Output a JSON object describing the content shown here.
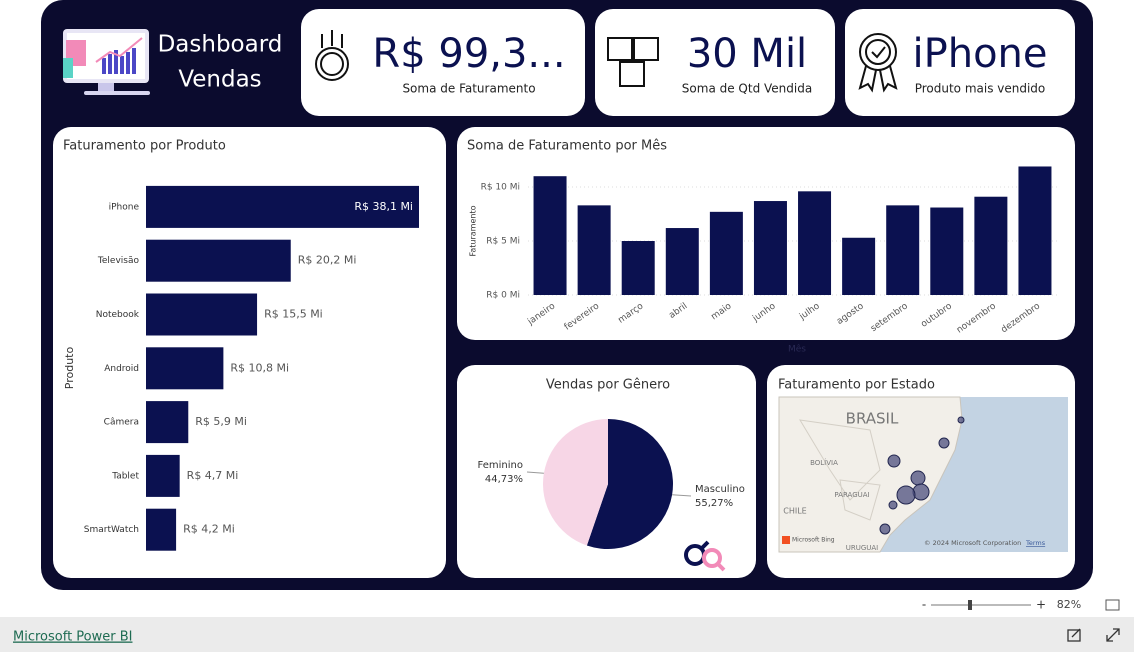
{
  "header": {
    "title": [
      "Dashboard",
      "Vendas"
    ]
  },
  "kpis": [
    {
      "value": "R$ 99,3...",
      "label": "Soma de Faturamento"
    },
    {
      "value": "30 Mil",
      "label": "Soma de Qtd Vendida"
    },
    {
      "value": "iPhone",
      "label": "Produto mais vendido"
    }
  ],
  "chart_data": [
    {
      "type": "bar",
      "orientation": "horizontal",
      "title": "Faturamento por Produto",
      "y_label": "Produto",
      "categories": [
        "iPhone",
        "Televisão",
        "Notebook",
        "Android",
        "Câmera",
        "Tablet",
        "SmartWatch"
      ],
      "values": [
        38.1,
        20.2,
        15.5,
        10.8,
        5.9,
        4.7,
        4.2
      ],
      "value_labels": [
        "R$ 38,1 Mi",
        "R$ 20,2 Mi",
        "R$ 15,5 Mi",
        "R$ 10,8 Mi",
        "R$ 5,9 Mi",
        "R$ 4,7 Mi",
        "R$ 4,2 Mi"
      ],
      "color": "#0b1150"
    },
    {
      "type": "bar",
      "title": "Soma de Faturamento por Mês",
      "x_label": "Mês",
      "y_label": "Faturamento",
      "categories": [
        "janeiro",
        "fevereiro",
        "março",
        "abril",
        "maio",
        "junho",
        "julho",
        "agosto",
        "setembro",
        "outubro",
        "novembro",
        "dezembro"
      ],
      "values": [
        11.0,
        8.3,
        5.0,
        6.2,
        7.7,
        8.7,
        9.6,
        5.3,
        8.3,
        8.1,
        9.1,
        11.9
      ],
      "ylim": [
        0,
        12.5
      ],
      "yticks": [
        {
          "value": 0,
          "label": "R$ 0 Mi"
        },
        {
          "value": 5,
          "label": "R$ 5 Mi"
        },
        {
          "value": 10,
          "label": "R$ 10 Mi"
        }
      ],
      "grid": true,
      "color": "#0b1150"
    },
    {
      "type": "pie",
      "title": "Vendas por Gênero",
      "categories": [
        "Masculino",
        "Feminino"
      ],
      "values": [
        55.27,
        44.73
      ],
      "value_labels": [
        "55,27%",
        "44,73%"
      ],
      "colors": [
        "#0b1150",
        "#f7d6e6"
      ]
    },
    {
      "type": "map",
      "title": "Faturamento por Estado",
      "places": [
        "BRASIL",
        "BOLÍVIA",
        "PARAGUAI",
        "CHILE",
        "URUGUAI"
      ],
      "provider": "Microsoft Bing",
      "attribution": "© 2024 Microsoft Corporation",
      "terms": "Terms"
    }
  ],
  "footer": {
    "zoom_out": "-",
    "zoom_in": "+",
    "zoom": "82%",
    "link": "Microsoft Power BI"
  }
}
